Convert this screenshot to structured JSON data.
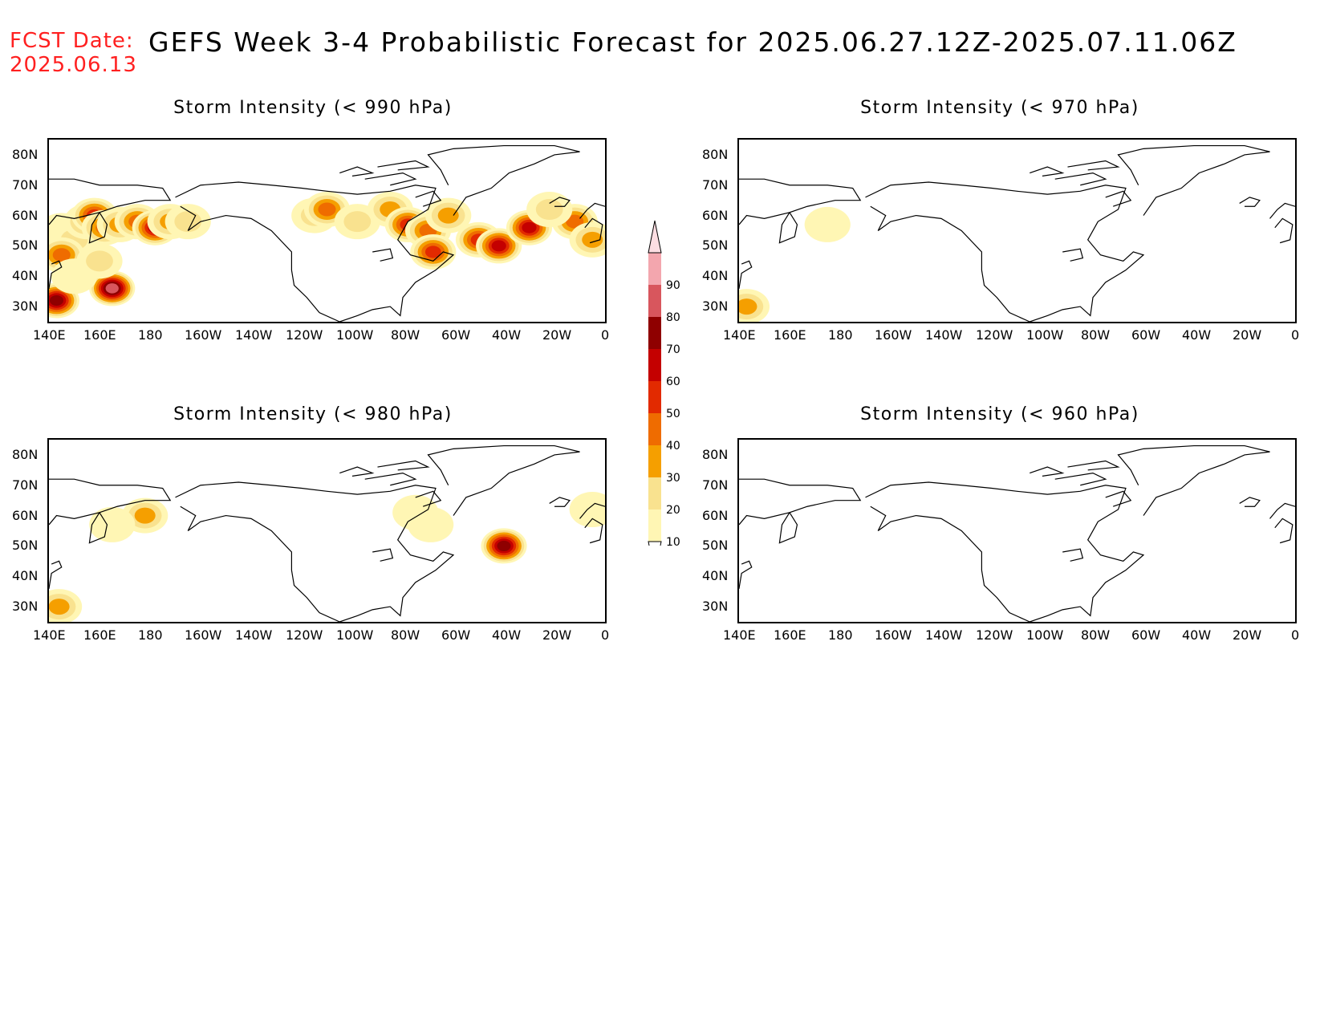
{
  "header": {
    "fcst_label": "FCST Date:",
    "fcst_date": "2025.06.13",
    "title": "GEFS Week 3-4 Probabilistic Forecast for 2025.06.27.12Z-2025.07.11.06Z"
  },
  "panels": [
    {
      "id": "p990",
      "title": "Storm Intensity (< 990 hPa)"
    },
    {
      "id": "p970",
      "title": "Storm Intensity (< 970 hPa)"
    },
    {
      "id": "p980",
      "title": "Storm Intensity (< 980 hPa)"
    },
    {
      "id": "p960",
      "title": "Storm Intensity (< 960 hPa)"
    }
  ],
  "axes": {
    "lat_labels": [
      "80N",
      "70N",
      "60N",
      "50N",
      "40N",
      "30N"
    ],
    "lon_labels": [
      "140E",
      "160E",
      "180",
      "160W",
      "140W",
      "120W",
      "100W",
      "80W",
      "60W",
      "40W",
      "20W",
      "0"
    ],
    "lat_range": [
      25,
      85
    ],
    "lon_range": [
      140,
      360
    ]
  },
  "colorbar": {
    "levels": [
      "10",
      "20",
      "30",
      "40",
      "50",
      "60",
      "70",
      "80",
      "90"
    ],
    "colors": [
      "#fff6b4",
      "#f9e28f",
      "#f59f00",
      "#ef6c00",
      "#e22a00",
      "#c40000",
      "#8f0000",
      "#d8565d",
      "#f3a6ae",
      "#fcdde2"
    ]
  },
  "map_data": {
    "p990": [
      {
        "lon": 145,
        "lat": 55,
        "p": 15
      },
      {
        "lon": 150,
        "lat": 52,
        "p": 25
      },
      {
        "lon": 155,
        "lat": 58,
        "p": 35
      },
      {
        "lon": 158,
        "lat": 60,
        "p": 55
      },
      {
        "lon": 162,
        "lat": 56,
        "p": 45
      },
      {
        "lon": 168,
        "lat": 57,
        "p": 30
      },
      {
        "lon": 175,
        "lat": 58,
        "p": 40
      },
      {
        "lon": 182,
        "lat": 56,
        "p": 65
      },
      {
        "lon": 188,
        "lat": 58,
        "p": 35
      },
      {
        "lon": 195,
        "lat": 58,
        "p": 20
      },
      {
        "lon": 145,
        "lat": 47,
        "p": 45
      },
      {
        "lon": 143,
        "lat": 32,
        "p": 75
      },
      {
        "lon": 165,
        "lat": 36,
        "p": 80
      },
      {
        "lon": 150,
        "lat": 40,
        "p": 15
      },
      {
        "lon": 160,
        "lat": 45,
        "p": 20
      },
      {
        "lon": 245,
        "lat": 60,
        "p": 20
      },
      {
        "lon": 250,
        "lat": 62,
        "p": 45
      },
      {
        "lon": 262,
        "lat": 58,
        "p": 25
      },
      {
        "lon": 275,
        "lat": 62,
        "p": 35
      },
      {
        "lon": 282,
        "lat": 57,
        "p": 55
      },
      {
        "lon": 290,
        "lat": 55,
        "p": 40
      },
      {
        "lon": 298,
        "lat": 60,
        "p": 35
      },
      {
        "lon": 292,
        "lat": 48,
        "p": 50
      },
      {
        "lon": 310,
        "lat": 52,
        "p": 55
      },
      {
        "lon": 318,
        "lat": 50,
        "p": 65
      },
      {
        "lon": 330,
        "lat": 56,
        "p": 60
      },
      {
        "lon": 348,
        "lat": 58,
        "p": 45
      },
      {
        "lon": 355,
        "lat": 52,
        "p": 30
      },
      {
        "lon": 338,
        "lat": 62,
        "p": 20
      }
    ],
    "p970": [
      {
        "lon": 143,
        "lat": 30,
        "p": 35
      },
      {
        "lon": 175,
        "lat": 57,
        "p": 10
      }
    ],
    "p980": [
      {
        "lon": 144,
        "lat": 30,
        "p": 35
      },
      {
        "lon": 178,
        "lat": 60,
        "p": 30
      },
      {
        "lon": 165,
        "lat": 57,
        "p": 15
      },
      {
        "lon": 291,
        "lat": 57,
        "p": 15
      },
      {
        "lon": 285,
        "lat": 61,
        "p": 10
      },
      {
        "lon": 320,
        "lat": 50,
        "p": 70
      },
      {
        "lon": 355,
        "lat": 62,
        "p": 10
      }
    ],
    "p960": []
  }
}
